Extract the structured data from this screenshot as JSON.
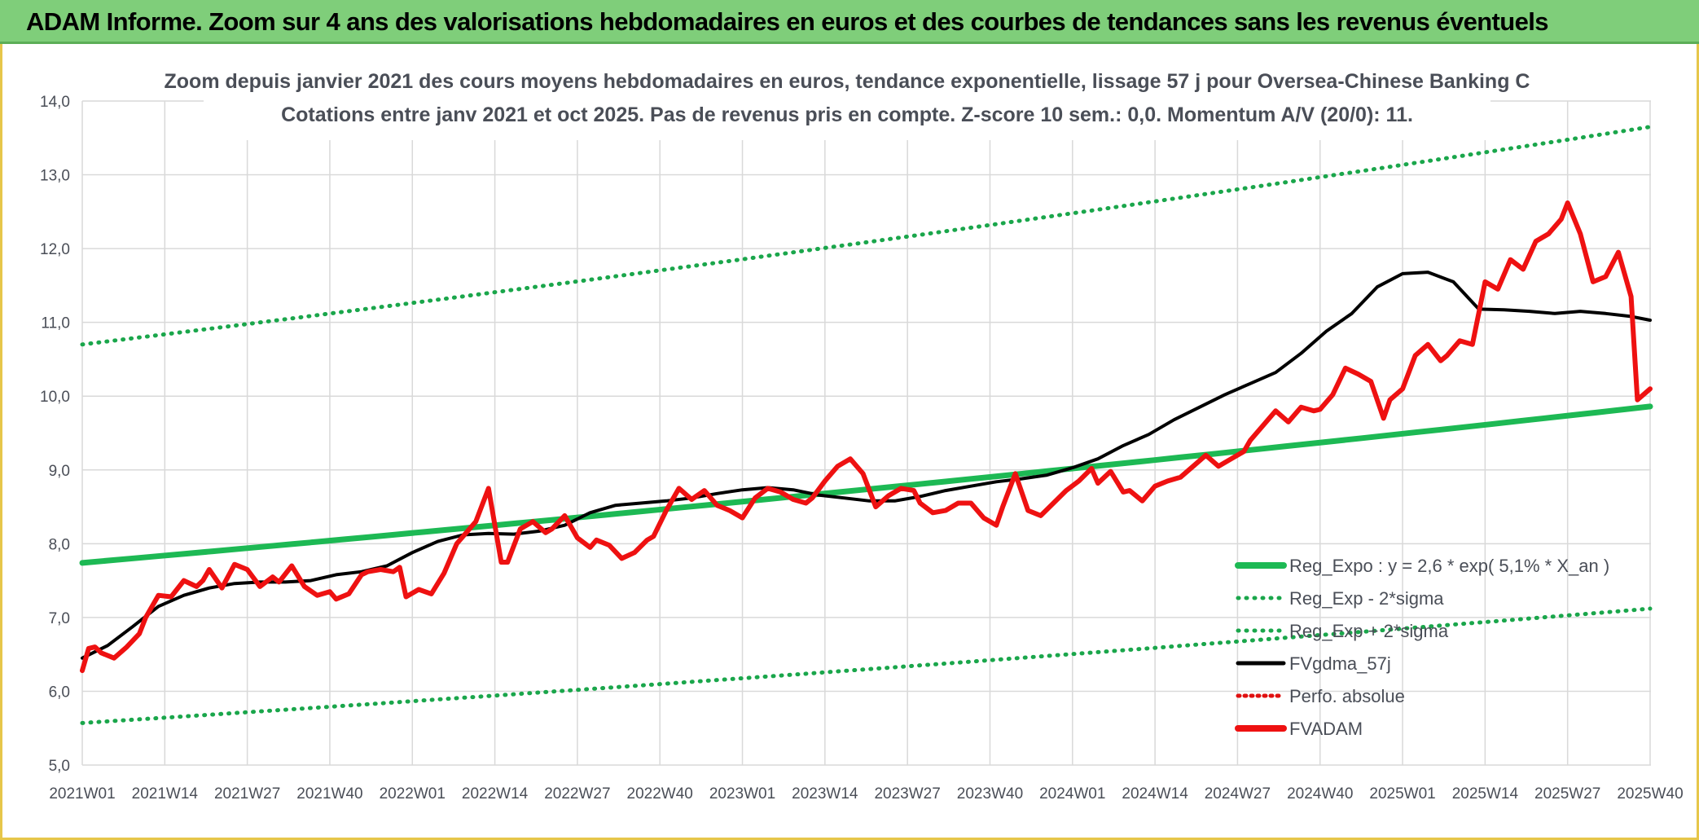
{
  "header": {
    "title": "ADAM Informe. Zoom sur 4 ans des valorisations hebdomadaires en euros et des courbes de tendances sans les revenus éventuels"
  },
  "colors": {
    "header_bg": "#7fce7a",
    "reg_expo": "#1db954",
    "sigma": "#1aa64b",
    "fvgdma": "#000000",
    "perfo": "#e01010",
    "fvadam": "#ee1111"
  },
  "chart_data": {
    "type": "line",
    "title": "Zoom depuis janvier 2021 des cours moyens hebdomadaires en euros, tendance exponentielle, lissage 57 j pour Oversea-Chinese Banking C",
    "subtitle": "Cotations entre janv 2021 et oct 2025. Pas de revenus pris en compte. Z-score 10 sem.: 0,0. Momentum A/V (20/0): 11.",
    "xlabel": "",
    "ylabel": "",
    "ylim": [
      5.0,
      14.0
    ],
    "y_ticks": [
      "5,0",
      "6,0",
      "7,0",
      "8,0",
      "9,0",
      "10,0",
      "11,0",
      "12,0",
      "13,0",
      "14,0"
    ],
    "x_tick_labels": [
      "2021W01",
      "2021W14",
      "2021W27",
      "2021W40",
      "2022W01",
      "2022W14",
      "2022W27",
      "2022W40",
      "2023W01",
      "2023W14",
      "2023W27",
      "2023W40",
      "2024W01",
      "2024W14",
      "2024W27",
      "2024W40",
      "2025W01",
      "2025W14",
      "2025W27",
      "2025W40"
    ],
    "x_range_weeks": [
      0,
      247
    ],
    "grid": true,
    "legend_position": "bottom-right",
    "series": [
      {
        "name": "Reg_Expo : y = 2,6 * exp( 5,1% *  X_an )",
        "style": "solid-thick",
        "color": "#1db954",
        "x": [
          0,
          247
        ],
        "values": [
          7.74,
          9.86
        ],
        "kind": "exponential"
      },
      {
        "name": "Reg_Exp - 2*sigma",
        "style": "dotted",
        "color": "#1aa64b",
        "x": [
          0,
          247
        ],
        "values": [
          5.57,
          7.12
        ],
        "kind": "exponential"
      },
      {
        "name": "Reg_Exp + 2*sigma",
        "style": "dotted",
        "color": "#1aa64b",
        "x": [
          0,
          247
        ],
        "values": [
          10.7,
          13.65
        ],
        "kind": "exponential"
      },
      {
        "name": "FVgdma_57j",
        "style": "solid",
        "color": "#000000",
        "x": [
          0,
          4,
          8,
          12,
          16,
          20,
          24,
          28,
          32,
          36,
          40,
          44,
          48,
          52,
          56,
          60,
          64,
          68,
          72,
          76,
          80,
          84,
          88,
          92,
          96,
          100,
          104,
          108,
          112,
          116,
          120,
          124,
          128,
          132,
          136,
          140,
          144,
          148,
          152,
          156,
          160,
          164,
          168,
          172,
          176,
          180,
          184,
          188,
          192,
          196,
          200,
          204,
          208,
          212,
          216,
          220,
          224,
          228,
          232,
          236,
          240,
          244,
          247
        ],
        "values": [
          6.45,
          6.62,
          6.88,
          7.15,
          7.3,
          7.4,
          7.46,
          7.48,
          7.48,
          7.5,
          7.58,
          7.62,
          7.7,
          7.88,
          8.03,
          8.12,
          8.14,
          8.13,
          8.17,
          8.25,
          8.42,
          8.52,
          8.55,
          8.58,
          8.62,
          8.68,
          8.73,
          8.76,
          8.73,
          8.66,
          8.62,
          8.58,
          8.58,
          8.64,
          8.72,
          8.78,
          8.84,
          8.88,
          8.93,
          9.03,
          9.15,
          9.33,
          9.48,
          9.68,
          9.85,
          10.02,
          10.17,
          10.32,
          10.58,
          10.88,
          11.12,
          11.48,
          11.66,
          11.68,
          11.55,
          11.18,
          11.17,
          11.15,
          11.12,
          11.15,
          11.12,
          11.08,
          11.03
        ]
      },
      {
        "name": "Perfo. absolue",
        "style": "dotted",
        "color": "#e01010",
        "x": [],
        "values": []
      },
      {
        "name": "FVADAM",
        "style": "solid-thick",
        "color": "#ee1111",
        "x": [
          0,
          1,
          2,
          3,
          5,
          7,
          9,
          10,
          12,
          14,
          16,
          18,
          19,
          20,
          22,
          24,
          26,
          28,
          30,
          31,
          33,
          35,
          37,
          39,
          40,
          42,
          44,
          45,
          47,
          49,
          50,
          51,
          53,
          55,
          57,
          59,
          62,
          64,
          66,
          67,
          69,
          71,
          73,
          74,
          76,
          78,
          80,
          81,
          83,
          85,
          87,
          89,
          90,
          92,
          94,
          96,
          98,
          100,
          102,
          104,
          106,
          108,
          110,
          112,
          114,
          115,
          117,
          119,
          121,
          123,
          125,
          127,
          129,
          131,
          132,
          134,
          136,
          138,
          140,
          142,
          144,
          145,
          147,
          149,
          151,
          153,
          155,
          157,
          159,
          160,
          162,
          164,
          165,
          167,
          169,
          171,
          173,
          175,
          177,
          179,
          181,
          183,
          184,
          186,
          188,
          190,
          192,
          194,
          195,
          197,
          199,
          201,
          203,
          205,
          206,
          208,
          210,
          212,
          214,
          215,
          217,
          219,
          221,
          223,
          225,
          227,
          229,
          231,
          233,
          234,
          236,
          238,
          240,
          242,
          244,
          245,
          247
        ],
        "values": [
          6.28,
          6.58,
          6.6,
          6.52,
          6.45,
          6.6,
          6.78,
          7.0,
          7.3,
          7.28,
          7.5,
          7.42,
          7.5,
          7.65,
          7.4,
          7.72,
          7.65,
          7.42,
          7.55,
          7.48,
          7.7,
          7.42,
          7.3,
          7.35,
          7.25,
          7.32,
          7.58,
          7.62,
          7.65,
          7.62,
          7.68,
          7.28,
          7.38,
          7.32,
          7.6,
          8.0,
          8.3,
          8.75,
          7.75,
          7.75,
          8.2,
          8.3,
          8.15,
          8.2,
          8.38,
          8.08,
          7.95,
          8.05,
          7.98,
          7.8,
          7.88,
          8.05,
          8.1,
          8.45,
          8.75,
          8.6,
          8.72,
          8.52,
          8.45,
          8.35,
          8.62,
          8.75,
          8.7,
          8.6,
          8.55,
          8.62,
          8.85,
          9.05,
          9.15,
          8.95,
          8.5,
          8.65,
          8.75,
          8.72,
          8.55,
          8.42,
          8.45,
          8.55,
          8.55,
          8.35,
          8.25,
          8.5,
          8.95,
          8.45,
          8.38,
          8.55,
          8.72,
          8.85,
          9.02,
          8.82,
          8.98,
          8.7,
          8.72,
          8.58,
          8.78,
          8.85,
          8.9,
          9.05,
          9.2,
          9.05,
          9.15,
          9.25,
          9.4,
          9.6,
          9.8,
          9.65,
          9.85,
          9.8,
          9.82,
          10.02,
          10.38,
          10.3,
          10.2,
          9.7,
          9.95,
          10.1,
          10.55,
          10.7,
          10.48,
          10.55,
          10.75,
          10.7,
          11.55,
          11.45,
          11.85,
          11.72,
          12.1,
          12.2,
          12.4,
          12.62,
          12.2,
          11.55,
          11.62,
          11.95,
          11.35,
          9.95,
          10.1
        ]
      }
    ]
  }
}
